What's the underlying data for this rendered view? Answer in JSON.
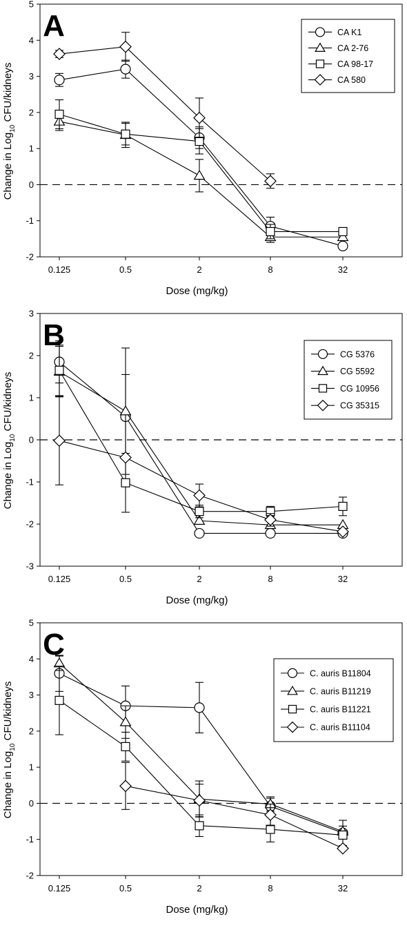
{
  "chart_data": [
    {
      "type": "line",
      "panel_label": "A",
      "xlabel": "Dose (mg/kg)",
      "ylabel": "Change in Log10 CFU/kidneys",
      "ylabel_parts": [
        "Change in Log",
        "10",
        " CFU/kidneys"
      ],
      "categories": [
        "0.125",
        "0.5",
        "2",
        "8",
        "32"
      ],
      "ylim": [
        -2,
        5
      ],
      "yticks": [
        -2,
        -1,
        0,
        1,
        2,
        3,
        4,
        5
      ],
      "reference_line": 0,
      "legend_position": "top-right",
      "series": [
        {
          "name": "CA K1",
          "marker": "circle",
          "values": [
            2.9,
            3.2,
            1.3,
            -1.15,
            -1.7
          ],
          "err": [
            0.18,
            0.25,
            0.3,
            0.25,
            0.0
          ]
        },
        {
          "name": "CA 2-76",
          "marker": "triangle",
          "values": [
            1.75,
            1.38,
            0.25,
            -1.45,
            -1.45
          ],
          "err": [
            0.25,
            0.35,
            0.45,
            0.15,
            0.0
          ]
        },
        {
          "name": "CA 98-17",
          "marker": "square",
          "values": [
            1.95,
            1.4,
            1.2,
            -1.3,
            -1.3
          ],
          "err": [
            0.4,
            0.3,
            0.35,
            0.2,
            0.0
          ]
        },
        {
          "name": "CA 580",
          "marker": "diamond",
          "values": [
            3.62,
            3.82,
            1.85,
            0.1,
            null
          ],
          "err": [
            0.1,
            0.4,
            0.55,
            0.2,
            0.0
          ]
        }
      ]
    },
    {
      "type": "line",
      "panel_label": "B",
      "xlabel": "Dose (mg/kg)",
      "ylabel": "Change in Log10 CFU/kidneys",
      "ylabel_parts": [
        "Change in Log",
        "10",
        " CFU/kidneys"
      ],
      "categories": [
        "0.125",
        "0.5",
        "2",
        "8",
        "32"
      ],
      "ylim": [
        -3,
        3
      ],
      "yticks": [
        -3,
        -2,
        -1,
        0,
        1,
        2,
        3
      ],
      "reference_line": 0,
      "legend_position": "right",
      "series": [
        {
          "name": "CG 5376",
          "marker": "circle",
          "values": [
            1.85,
            0.55,
            -2.22,
            -2.22,
            -2.22
          ],
          "err": [
            0.5,
            1.0,
            0.0,
            0.0,
            0.0
          ]
        },
        {
          "name": "CG 5592",
          "marker": "triangle",
          "values": [
            1.62,
            0.68,
            -1.92,
            -2.02,
            -2.02
          ],
          "err": [
            0.6,
            1.5,
            0.0,
            0.0,
            0.0
          ]
        },
        {
          "name": "CG 10956",
          "marker": "square",
          "values": [
            1.65,
            -1.02,
            -1.7,
            -1.7,
            -1.58
          ],
          "err": [
            0.6,
            0.7,
            0.15,
            0.12,
            0.22
          ]
        },
        {
          "name": "CG 35315",
          "marker": "diamond",
          "values": [
            -0.02,
            -0.42,
            -1.32,
            -1.9,
            -2.18
          ],
          "err": [
            1.05,
            0.0,
            0.27,
            0.15,
            0.0
          ]
        }
      ]
    },
    {
      "type": "line",
      "panel_label": "C",
      "xlabel": "Dose (mg/kg)",
      "ylabel": "Change in Log10 CFU/kidneys",
      "ylabel_parts": [
        "Change in Log",
        "10",
        " CFU/kidneys"
      ],
      "categories": [
        "0.125",
        "0.5",
        "2",
        "8",
        "32"
      ],
      "ylim": [
        -2,
        5
      ],
      "yticks": [
        -2,
        -1,
        0,
        1,
        2,
        3,
        4,
        5
      ],
      "reference_line": 0,
      "legend_position": "top-right",
      "series": [
        {
          "name": "C. auris B11804",
          "marker": "circle",
          "values": [
            3.6,
            2.7,
            2.65,
            -0.08,
            -0.82
          ],
          "err": [
            0.5,
            0.55,
            0.7,
            0.22,
            0.35
          ]
        },
        {
          "name": "C. auris B11219",
          "marker": "triangle",
          "values": [
            3.88,
            2.25,
            0.12,
            -0.02,
            -0.78
          ],
          "err": [
            0.2,
            0.45,
            0.5,
            0.2,
            0.15
          ]
        },
        {
          "name": "C. auris B11221",
          "marker": "square",
          "values": [
            2.85,
            1.57,
            -0.62,
            -0.72,
            -0.88
          ],
          "err": [
            0.95,
            0.4,
            0.3,
            0.35,
            0.0
          ]
        },
        {
          "name": "C. auris B11104",
          "marker": "diamond",
          "values": [
            null,
            0.48,
            0.08,
            -0.32,
            -1.25
          ],
          "err": [
            0.0,
            0.65,
            0.45,
            0.3,
            0.0
          ]
        }
      ]
    }
  ]
}
